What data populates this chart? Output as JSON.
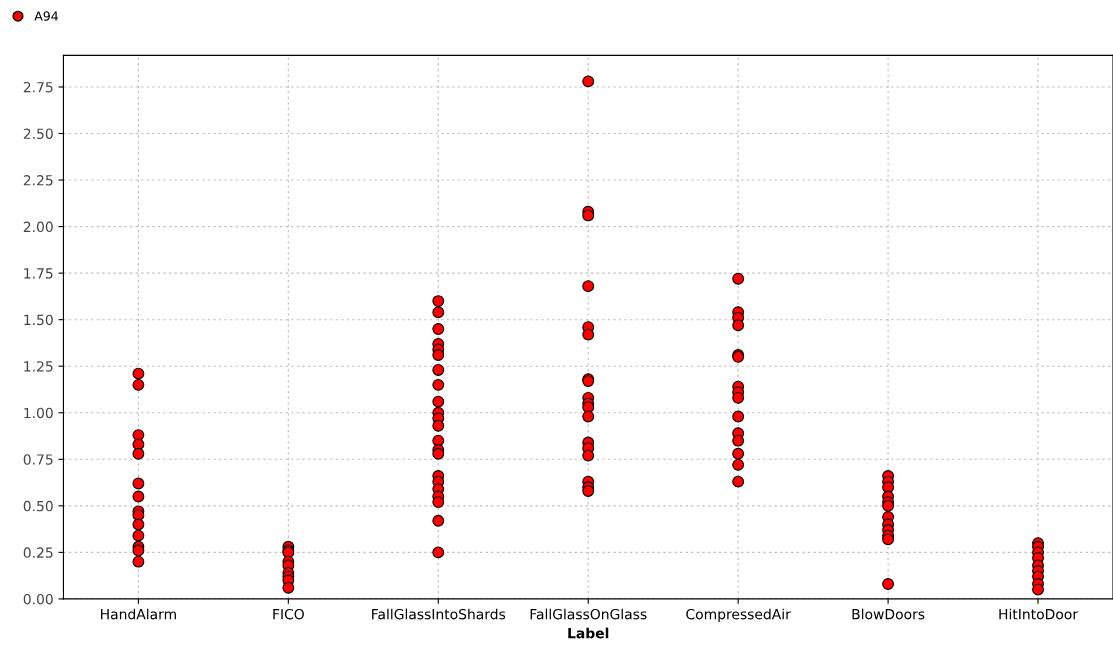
{
  "chart_data": {
    "type": "scatter",
    "xlabel": "Label",
    "categories": [
      "HandAlarm",
      "FICO",
      "FallGlassIntoShards",
      "FallGlassOnGlass",
      "CompressedAir",
      "BlowDoors",
      "HitIntoDoor"
    ],
    "series": [
      {
        "name": "A94",
        "color": "#ff0000",
        "x": [
          "HandAlarm",
          "HandAlarm",
          "HandAlarm",
          "HandAlarm",
          "HandAlarm",
          "HandAlarm",
          "HandAlarm",
          "HandAlarm",
          "HandAlarm",
          "HandAlarm",
          "HandAlarm",
          "HandAlarm",
          "HandAlarm",
          "HandAlarm",
          "FICO",
          "FICO",
          "FICO",
          "FICO",
          "FICO",
          "FICO",
          "FICO",
          "FICO",
          "FICO",
          "FallGlassIntoShards",
          "FallGlassIntoShards",
          "FallGlassIntoShards",
          "FallGlassIntoShards",
          "FallGlassIntoShards",
          "FallGlassIntoShards",
          "FallGlassIntoShards",
          "FallGlassIntoShards",
          "FallGlassIntoShards",
          "FallGlassIntoShards",
          "FallGlassIntoShards",
          "FallGlassIntoShards",
          "FallGlassIntoShards",
          "FallGlassIntoShards",
          "FallGlassIntoShards",
          "FallGlassIntoShards",
          "FallGlassIntoShards",
          "FallGlassIntoShards",
          "FallGlassIntoShards",
          "FallGlassIntoShards",
          "FallGlassIntoShards",
          "FallGlassIntoShards",
          "FallGlassOnGlass",
          "FallGlassOnGlass",
          "FallGlassOnGlass",
          "FallGlassOnGlass",
          "FallGlassOnGlass",
          "FallGlassOnGlass",
          "FallGlassOnGlass",
          "FallGlassOnGlass",
          "FallGlassOnGlass",
          "FallGlassOnGlass",
          "FallGlassOnGlass",
          "FallGlassOnGlass",
          "FallGlassOnGlass",
          "FallGlassOnGlass",
          "FallGlassOnGlass",
          "FallGlassOnGlass",
          "FallGlassOnGlass",
          "FallGlassOnGlass",
          "CompressedAir",
          "CompressedAir",
          "CompressedAir",
          "CompressedAir",
          "CompressedAir",
          "CompressedAir",
          "CompressedAir",
          "CompressedAir",
          "CompressedAir",
          "CompressedAir",
          "CompressedAir",
          "CompressedAir",
          "CompressedAir",
          "CompressedAir",
          "CompressedAir",
          "BlowDoors",
          "BlowDoors",
          "BlowDoors",
          "BlowDoors",
          "BlowDoors",
          "BlowDoors",
          "BlowDoors",
          "BlowDoors",
          "BlowDoors",
          "BlowDoors",
          "BlowDoors",
          "BlowDoors",
          "HitIntoDoor",
          "HitIntoDoor",
          "HitIntoDoor",
          "HitIntoDoor",
          "HitIntoDoor",
          "HitIntoDoor",
          "HitIntoDoor",
          "HitIntoDoor",
          "HitIntoDoor"
        ],
        "values": [
          1.21,
          1.15,
          0.88,
          0.83,
          0.78,
          0.62,
          0.55,
          0.47,
          0.45,
          0.4,
          0.34,
          0.28,
          0.26,
          0.2,
          0.28,
          0.26,
          0.25,
          0.2,
          0.18,
          0.14,
          0.12,
          0.1,
          0.06,
          1.6,
          1.54,
          1.45,
          1.37,
          1.34,
          1.31,
          1.23,
          1.15,
          1.06,
          1.0,
          0.97,
          0.93,
          0.85,
          0.8,
          0.78,
          0.66,
          0.63,
          0.59,
          0.55,
          0.52,
          0.42,
          0.25,
          2.78,
          2.08,
          2.06,
          1.68,
          1.46,
          1.42,
          1.18,
          1.17,
          1.08,
          1.05,
          1.03,
          0.98,
          0.84,
          0.81,
          0.77,
          0.63,
          0.6,
          0.58,
          1.72,
          1.54,
          1.51,
          1.47,
          1.31,
          1.3,
          1.14,
          1.11,
          1.08,
          0.98,
          0.89,
          0.85,
          0.78,
          0.72,
          0.63,
          0.66,
          0.63,
          0.6,
          0.55,
          0.52,
          0.5,
          0.44,
          0.4,
          0.37,
          0.34,
          0.32,
          0.08,
          0.3,
          0.28,
          0.25,
          0.22,
          0.18,
          0.15,
          0.12,
          0.08,
          0.05
        ]
      }
    ],
    "ylim": [
      0,
      2.92
    ],
    "yticks": [
      {
        "value": 0,
        "label": "0.00"
      },
      {
        "value": 0.25,
        "label": "0.25"
      },
      {
        "value": 0.5,
        "label": "0.50"
      },
      {
        "value": 0.75,
        "label": "0.75"
      },
      {
        "value": 1,
        "label": "1.00"
      },
      {
        "value": 1.25,
        "label": "1.25"
      },
      {
        "value": 1.5,
        "label": "1.50"
      },
      {
        "value": 1.75,
        "label": "1.75"
      },
      {
        "value": 2,
        "label": "2.00"
      },
      {
        "value": 2.25,
        "label": "2.25"
      },
      {
        "value": 2.5,
        "label": "2.50"
      },
      {
        "value": 2.75,
        "label": "2.75"
      }
    ],
    "grid": true,
    "legend": "top left",
    "marker": "circle"
  }
}
